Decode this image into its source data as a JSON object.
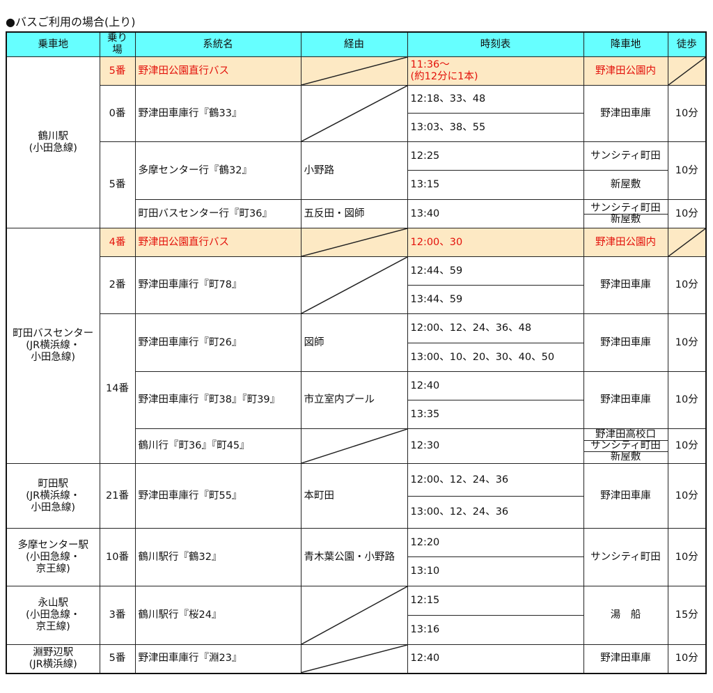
{
  "title": "●バスご利用の場合(上り)",
  "headers": [
    "乗車地",
    "乗り場",
    "系統名",
    "経由",
    "時刻表",
    "降車地",
    "徒歩"
  ],
  "colors": {
    "header_bg": "#66ffff",
    "highlight_bg": "#fde9c4",
    "highlight_text": "#e3120b"
  },
  "stations": [
    "鶴川駅\n(小田急線)",
    "町田バスセンター\n(JR横浜線・\n小田急線)",
    "町田駅\n(JR横浜線・\n小田急線)",
    "多摩センター駅\n(小田急線・\n京王線)",
    "永山駅\n(小田急線・\n京王線)",
    "淵野辺駅\n(JR横浜線)"
  ],
  "routes": [
    {
      "stop": "5番",
      "name": "野津田公園直行バス",
      "times": [
        "11:36～\n(約12分に1本)"
      ],
      "dest": [
        "野津田公園内"
      ]
    },
    {
      "stop": "0番",
      "name": "野津田車庫行『鶴33』",
      "times": [
        "12:18、33、48",
        "13:03、38、55"
      ],
      "dest": [
        "野津田車庫"
      ],
      "walk": "10分"
    },
    {
      "stop": "5番",
      "name": "多摩センター行『鶴32』",
      "via": "小野路",
      "times": [
        "12:25",
        "13:15"
      ],
      "dest": [
        "サンシティ町田",
        "新屋敷"
      ],
      "walk": "10分"
    },
    {
      "name": "町田バスセンター行『町36』",
      "via": "五反田・図師",
      "times": [
        "13:40"
      ],
      "dest": [
        "サンシティ町田",
        "新屋敷"
      ],
      "walk": "10分"
    },
    {
      "stop": "4番",
      "name": "野津田公園直行バス",
      "times": [
        "12:00、30"
      ],
      "dest": [
        "野津田公園内"
      ]
    },
    {
      "stop": "2番",
      "name": "野津田車庫行『町78』",
      "times": [
        "12:44、59",
        "13:44、59"
      ],
      "dest": [
        "野津田車庫"
      ],
      "walk": "10分"
    },
    {
      "stop": "14番",
      "name": "野津田車庫行『町26』",
      "via": "図師",
      "times": [
        "12:00、12、24、36、48",
        "13:00、10、20、30、40、50"
      ],
      "dest": [
        "野津田車庫"
      ],
      "walk": "10分"
    },
    {
      "name": "野津田車庫行『町38』『町39』",
      "via": "市立室内プール",
      "times": [
        "12:40",
        "13:35"
      ],
      "dest": [
        "野津田車庫"
      ],
      "walk": "10分"
    },
    {
      "name": "鶴川行『町36』『町45』",
      "times": [
        "12:30"
      ],
      "dest": [
        "野津田高校口",
        "サンシティ町田",
        "新屋敷"
      ],
      "walk": "10分"
    },
    {
      "stop": "21番",
      "name": "野津田車庫行『町55』",
      "via": "本町田",
      "times": [
        "12:00、12、24、36",
        "13:00、12、24、36"
      ],
      "dest": [
        "野津田車庫"
      ],
      "walk": "10分"
    },
    {
      "stop": "10番",
      "name": "鶴川駅行『鶴32』",
      "via": "青木葉公園・小野路",
      "times": [
        "12:20",
        "13:10"
      ],
      "dest": [
        "サンシティ町田"
      ],
      "walk": "10分"
    },
    {
      "stop": "3番",
      "name": "鶴川駅行『桜24』",
      "times": [
        "12:15",
        "13:16"
      ],
      "dest": [
        "湯　船"
      ],
      "walk": "15分"
    },
    {
      "stop": "5番",
      "name": "野津田車庫行『淵23』",
      "times": [
        "12:40"
      ],
      "dest": [
        "野津田車庫"
      ],
      "walk": "10分"
    }
  ]
}
